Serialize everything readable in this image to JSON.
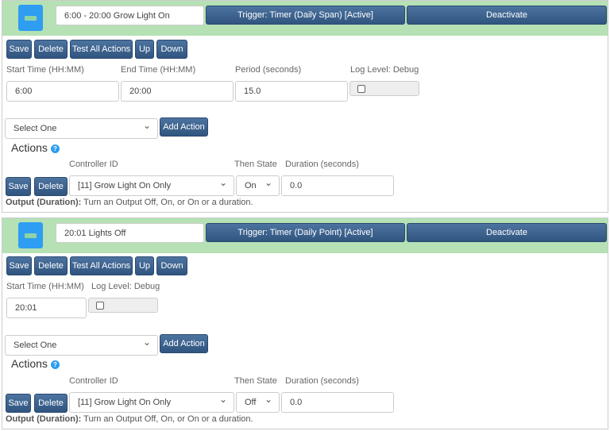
{
  "triggers": [
    {
      "name": "6:00 - 20:00 Grow Light On",
      "trigger_label": "Trigger: Timer (Daily Span) [Active]",
      "deactivate": "Deactivate",
      "buttons": [
        "Save",
        "Delete",
        "Test All Actions",
        "Up",
        "Down"
      ],
      "fields": [
        {
          "label": "Start Time (HH:MM)",
          "value": "6:00"
        },
        {
          "label": "End Time (HH:MM)",
          "value": "20:00"
        },
        {
          "label": "Period (seconds)",
          "value": "15.0"
        }
      ],
      "log_level_label": "Log Level: Debug",
      "log_level_checked": false,
      "action_select": "Select One",
      "add_action": "Add Action",
      "actions_heading": "Actions",
      "help_icon": "?",
      "controller_label": "Controller ID",
      "then_state_label": "Then State",
      "duration_label": "Duration (seconds)",
      "action": {
        "save": "Save",
        "delete": "Delete",
        "controller": "[11] Grow Light On Only",
        "state": "On",
        "duration": "0.0"
      },
      "output_bold": "Output (Duration):",
      "output_desc": " Turn an Output Off, On, or On or a duration."
    },
    {
      "name": "20:01 Lights Off",
      "trigger_label": "Trigger: Timer (Daily Point) [Active]",
      "deactivate": "Deactivate",
      "buttons": [
        "Save",
        "Delete",
        "Test All Actions",
        "Up",
        "Down"
      ],
      "fields": [
        {
          "label": "Start Time (HH:MM)",
          "value": "20:01"
        }
      ],
      "log_level_label": "Log Level: Debug",
      "log_level_checked": false,
      "action_select": "Select One",
      "add_action": "Add Action",
      "actions_heading": "Actions",
      "help_icon": "?",
      "controller_label": "Controller ID",
      "then_state_label": "Then State",
      "duration_label": "Duration (seconds)",
      "action": {
        "save": "Save",
        "delete": "Delete",
        "controller": "[11] Grow Light On Only",
        "state": "Off",
        "duration": "0.0"
      },
      "output_bold": "Output (Duration):",
      "output_desc": " Turn an Output Off, On, or On or a duration."
    }
  ]
}
